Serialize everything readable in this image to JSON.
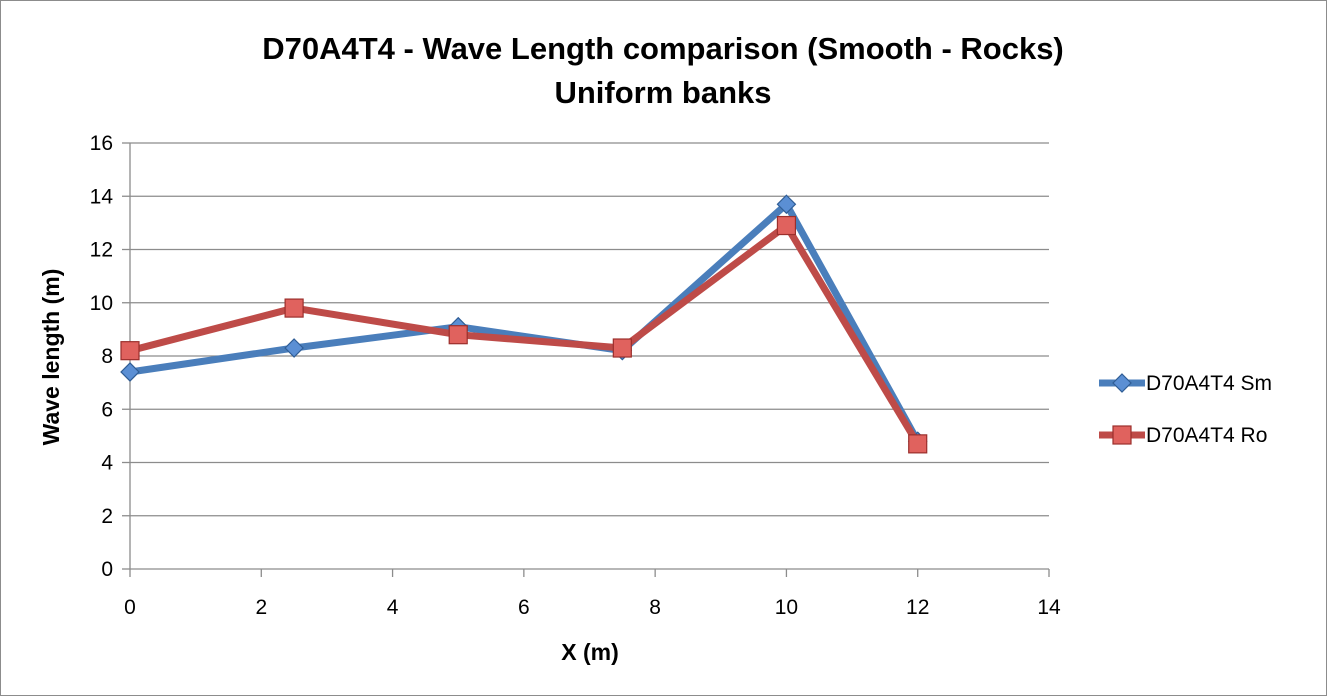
{
  "chart_data": {
    "type": "line",
    "title_lines": [
      "D70A4T4 - Wave Length comparison (Smooth - Rocks)",
      "Uniform banks"
    ],
    "xlabel": "X (m)",
    "ylabel": "Wave length (m)",
    "xlim": [
      0,
      14
    ],
    "ylim": [
      0,
      16
    ],
    "xticks": [
      0,
      2,
      4,
      6,
      8,
      10,
      12,
      14
    ],
    "yticks": [
      0,
      2,
      4,
      6,
      8,
      10,
      12,
      14,
      16
    ],
    "grid": "horizontal",
    "legend_position": "right",
    "series": [
      {
        "name": "D70A4T4 Sm",
        "color": "#4a7ebb",
        "marker": "diamond",
        "points": [
          [
            0,
            7.4
          ],
          [
            2.5,
            8.3
          ],
          [
            5,
            9.1
          ],
          [
            7.5,
            8.2
          ],
          [
            10,
            13.7
          ],
          [
            12,
            4.8
          ]
        ]
      },
      {
        "name": "D70A4T4 Ro",
        "color": "#be4b48",
        "marker": "square",
        "points": [
          [
            0,
            8.2
          ],
          [
            2.5,
            9.8
          ],
          [
            5,
            8.8
          ],
          [
            7.5,
            8.3
          ],
          [
            10,
            12.9
          ],
          [
            12,
            4.7
          ]
        ]
      }
    ]
  }
}
